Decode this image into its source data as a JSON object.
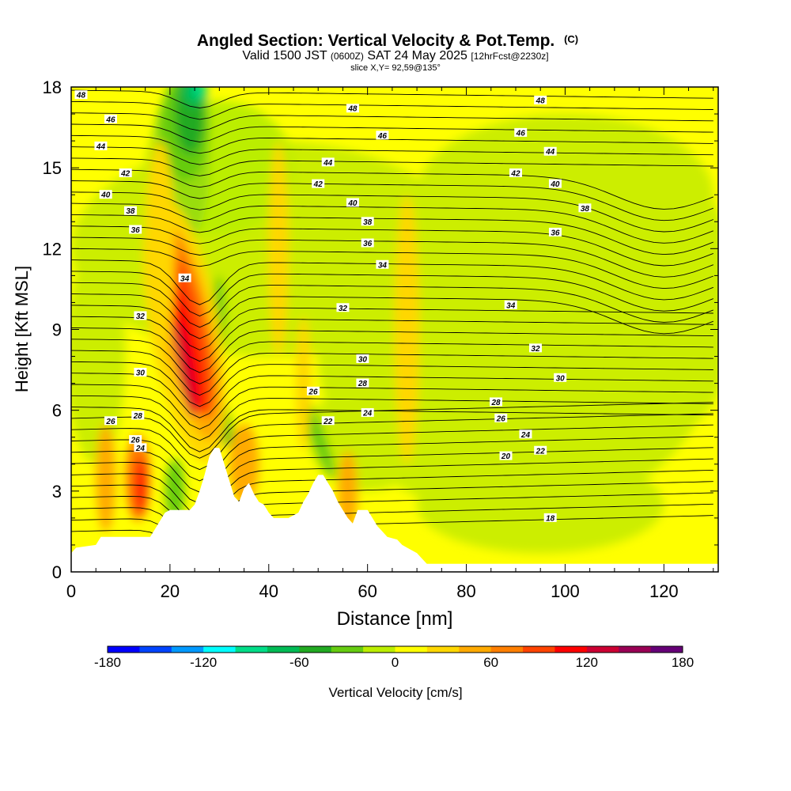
{
  "chart_data": {
    "type": "heatmap",
    "title": "Angled Section: Vertical Velocity & Pot.Temp.",
    "title_unit": "(C)",
    "subtitle": {
      "lead": "Valid 1500 JST",
      "zulu": "(0600Z)",
      "date": "SAT 24 May 2025",
      "forecast": "[12hrFcst@2230z]"
    },
    "slice_text": "slice X,Y= 92,59@135°",
    "xlabel": "Distance [nm]",
    "ylabel": "Height [Kft MSL]",
    "xlim": [
      0,
      131
    ],
    "ylim": [
      0,
      18
    ],
    "x_ticks": [
      "0",
      "20",
      "40",
      "60",
      "80",
      "100",
      "120"
    ],
    "y_ticks": [
      "0",
      "3",
      "6",
      "9",
      "12",
      "15",
      "18"
    ],
    "colorbar": {
      "label": "Vertical Velocity [cm/s]",
      "ticks": [
        "-180",
        "-120",
        "-60",
        "0",
        "60",
        "120",
        "180"
      ],
      "range": [
        -180,
        180
      ],
      "colors": [
        "#0000ff",
        "#0044ff",
        "#0099ff",
        "#00ffff",
        "#00dd88",
        "#00bb55",
        "#22aa22",
        "#66cc11",
        "#bbee00",
        "#ffff00",
        "#ffd700",
        "#ffaa00",
        "#ff7f00",
        "#ff4400",
        "#ff0000",
        "#cc0033",
        "#990055",
        "#660077"
      ]
    },
    "theta_contour_labels": [
      {
        "text": "48",
        "x": 2,
        "y": 17.7
      },
      {
        "text": "46",
        "x": 8,
        "y": 16.8
      },
      {
        "text": "44",
        "x": 6,
        "y": 15.8
      },
      {
        "text": "42",
        "x": 11,
        "y": 14.8
      },
      {
        "text": "40",
        "x": 7,
        "y": 14.0
      },
      {
        "text": "38",
        "x": 12,
        "y": 13.4
      },
      {
        "text": "36",
        "x": 13,
        "y": 12.7
      },
      {
        "text": "34",
        "x": 23,
        "y": 10.9
      },
      {
        "text": "32",
        "x": 14,
        "y": 9.5
      },
      {
        "text": "30",
        "x": 14,
        "y": 7.4
      },
      {
        "text": "28",
        "x": 13.5,
        "y": 5.8
      },
      {
        "text": "26",
        "x": 13,
        "y": 4.9
      },
      {
        "text": "26",
        "x": 8,
        "y": 5.6
      },
      {
        "text": "24",
        "x": 14,
        "y": 4.6
      },
      {
        "text": "48",
        "x": 57,
        "y": 17.2
      },
      {
        "text": "46",
        "x": 63,
        "y": 16.2
      },
      {
        "text": "44",
        "x": 52,
        "y": 15.2
      },
      {
        "text": "42",
        "x": 50,
        "y": 14.4
      },
      {
        "text": "40",
        "x": 57,
        "y": 13.7
      },
      {
        "text": "38",
        "x": 60,
        "y": 13.0
      },
      {
        "text": "36",
        "x": 60,
        "y": 12.2
      },
      {
        "text": "34",
        "x": 63,
        "y": 11.4
      },
      {
        "text": "32",
        "x": 55,
        "y": 9.8
      },
      {
        "text": "30",
        "x": 59,
        "y": 7.9
      },
      {
        "text": "28",
        "x": 59,
        "y": 7.0
      },
      {
        "text": "26",
        "x": 49,
        "y": 6.7
      },
      {
        "text": "24",
        "x": 60,
        "y": 5.9
      },
      {
        "text": "22",
        "x": 52,
        "y": 5.6
      },
      {
        "text": "48",
        "x": 95,
        "y": 17.5
      },
      {
        "text": "46",
        "x": 91,
        "y": 16.3
      },
      {
        "text": "44",
        "x": 97,
        "y": 15.6
      },
      {
        "text": "42",
        "x": 90,
        "y": 14.8
      },
      {
        "text": "40",
        "x": 98,
        "y": 14.4
      },
      {
        "text": "38",
        "x": 104,
        "y": 13.5
      },
      {
        "text": "36",
        "x": 98,
        "y": 12.6
      },
      {
        "text": "34",
        "x": 89,
        "y": 9.9
      },
      {
        "text": "32",
        "x": 94,
        "y": 8.3
      },
      {
        "text": "30",
        "x": 99,
        "y": 7.2
      },
      {
        "text": "28",
        "x": 86,
        "y": 6.3
      },
      {
        "text": "26",
        "x": 87,
        "y": 5.7
      },
      {
        "text": "24",
        "x": 92,
        "y": 5.1
      },
      {
        "text": "22",
        "x": 95,
        "y": 4.5
      },
      {
        "text": "20",
        "x": 88,
        "y": 4.3
      },
      {
        "text": "18",
        "x": 97,
        "y": 2.0
      }
    ],
    "terrain_kft": [
      [
        0,
        0.7
      ],
      [
        1,
        0.9
      ],
      [
        5,
        1.0
      ],
      [
        6,
        1.3
      ],
      [
        8,
        1.3
      ],
      [
        11,
        1.3
      ],
      [
        13,
        1.3
      ],
      [
        14,
        1.3
      ],
      [
        16,
        1.3
      ],
      [
        17,
        1.6
      ],
      [
        18,
        1.9
      ],
      [
        19,
        2.2
      ],
      [
        20,
        2.3
      ],
      [
        22,
        2.3
      ],
      [
        24,
        2.3
      ],
      [
        25,
        2.5
      ],
      [
        26,
        3.0
      ],
      [
        27,
        3.6
      ],
      [
        28,
        4.3
      ],
      [
        29,
        4.6
      ],
      [
        30,
        4.6
      ],
      [
        31,
        4.0
      ],
      [
        32,
        3.4
      ],
      [
        33,
        2.8
      ],
      [
        34,
        2.6
      ],
      [
        35,
        3.1
      ],
      [
        36,
        3.3
      ],
      [
        37,
        2.9
      ],
      [
        38,
        2.6
      ],
      [
        39,
        2.5
      ],
      [
        40,
        2.2
      ],
      [
        41,
        2.0
      ],
      [
        44,
        2.0
      ],
      [
        46,
        2.2
      ],
      [
        47,
        2.6
      ],
      [
        48,
        2.9
      ],
      [
        49,
        3.3
      ],
      [
        50,
        3.6
      ],
      [
        51,
        3.6
      ],
      [
        52,
        3.3
      ],
      [
        53,
        3.0
      ],
      [
        54,
        2.6
      ],
      [
        55,
        2.3
      ],
      [
        56,
        2.0
      ],
      [
        57,
        1.8
      ],
      [
        58,
        2.3
      ],
      [
        60,
        2.3
      ],
      [
        61,
        2.0
      ],
      [
        62,
        1.7
      ],
      [
        63,
        1.5
      ],
      [
        64,
        1.3
      ],
      [
        66,
        1.2
      ],
      [
        67,
        1.0
      ],
      [
        68,
        0.9
      ],
      [
        70,
        0.7
      ],
      [
        71,
        0.5
      ],
      [
        72,
        0.3
      ],
      [
        131,
        0.3
      ]
    ]
  }
}
